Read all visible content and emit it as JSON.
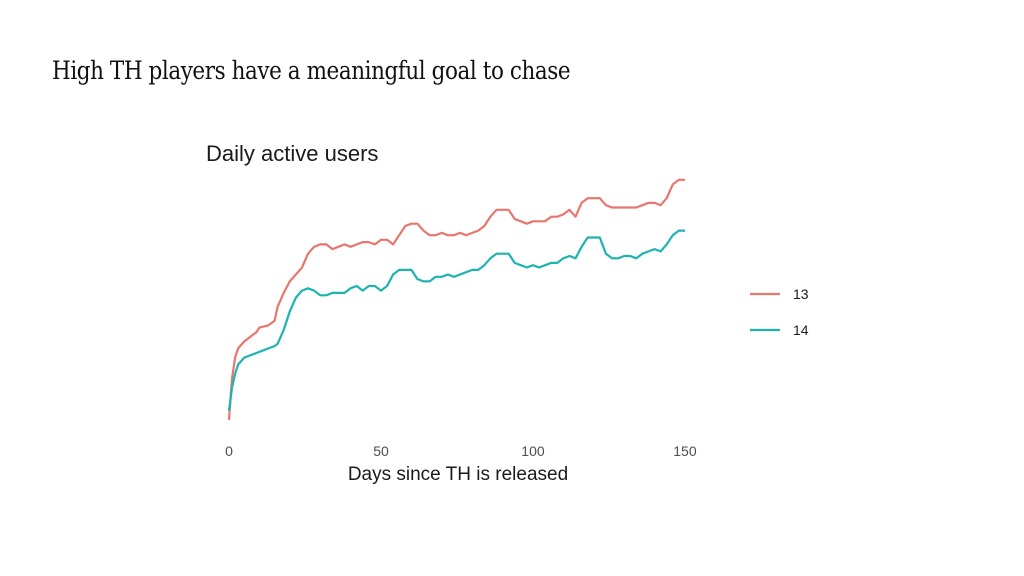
{
  "slide": {
    "title": "High TH players have a meaningful goal to chase"
  },
  "chart_data": {
    "type": "line",
    "title": "Daily active users",
    "xlabel": "Days since TH is released",
    "ylabel": "",
    "xlim": [
      0,
      151
    ],
    "ylim": [
      0,
      100
    ],
    "xticks": [
      0,
      50,
      100,
      150
    ],
    "y_tick_labels_shown": false,
    "grid": false,
    "legend_position": "right",
    "series": [
      {
        "name": "13",
        "color": "#E8756E",
        "x": [
          0,
          1,
          2,
          3,
          5,
          7,
          9,
          10,
          13,
          15,
          16,
          18,
          20,
          22,
          24,
          26,
          28,
          30,
          32,
          34,
          36,
          38,
          40,
          42,
          44,
          46,
          48,
          50,
          52,
          54,
          56,
          58,
          60,
          62,
          64,
          66,
          68,
          70,
          72,
          74,
          76,
          78,
          80,
          82,
          84,
          86,
          88,
          90,
          92,
          94,
          96,
          98,
          100,
          102,
          104,
          106,
          108,
          110,
          112,
          114,
          116,
          118,
          120,
          122,
          124,
          126,
          128,
          130,
          132,
          134,
          136,
          138,
          140,
          142,
          144,
          146,
          148,
          150
        ],
        "values": [
          0,
          18,
          27,
          31,
          34,
          36,
          38,
          40,
          41,
          43,
          49,
          55,
          60,
          63,
          66,
          72,
          75,
          76,
          76,
          74,
          75,
          76,
          75,
          76,
          77,
          77,
          76,
          78,
          78,
          76,
          80,
          84,
          85,
          85,
          82,
          80,
          80,
          81,
          80,
          80,
          81,
          80,
          81,
          82,
          84,
          88,
          91,
          91,
          91,
          87,
          86,
          85,
          86,
          86,
          86,
          88,
          88,
          89,
          91,
          88,
          94,
          96,
          96,
          96,
          93,
          92,
          92,
          92,
          92,
          92,
          93,
          94,
          94,
          93,
          96,
          102,
          104,
          104
        ]
      },
      {
        "name": "14",
        "color": "#1FB3AF",
        "x": [
          0,
          1,
          2,
          3,
          5,
          7,
          9,
          11,
          13,
          15,
          16,
          18,
          20,
          22,
          24,
          26,
          28,
          30,
          32,
          34,
          36,
          38,
          40,
          42,
          44,
          46,
          48,
          50,
          52,
          54,
          56,
          58,
          60,
          62,
          64,
          66,
          68,
          70,
          72,
          74,
          76,
          78,
          80,
          82,
          84,
          86,
          88,
          90,
          92,
          94,
          96,
          98,
          100,
          102,
          104,
          106,
          108,
          110,
          112,
          114,
          116,
          118,
          120,
          122,
          124,
          126,
          128,
          130,
          132,
          134,
          136,
          138,
          140,
          142,
          144,
          146,
          148,
          150
        ],
        "values": [
          4,
          14,
          20,
          24,
          27,
          28,
          29,
          30,
          31,
          32,
          33,
          39,
          47,
          53,
          56,
          57,
          56,
          54,
          54,
          55,
          55,
          55,
          57,
          58,
          56,
          58,
          58,
          56,
          58,
          63,
          65,
          65,
          65,
          61,
          60,
          60,
          62,
          62,
          63,
          62,
          63,
          64,
          65,
          65,
          67,
          70,
          72,
          72,
          72,
          68,
          67,
          66,
          67,
          66,
          67,
          68,
          68,
          70,
          71,
          70,
          75,
          79,
          79,
          79,
          72,
          70,
          70,
          71,
          71,
          70,
          72,
          73,
          74,
          73,
          76,
          80,
          82,
          82
        ]
      }
    ]
  }
}
